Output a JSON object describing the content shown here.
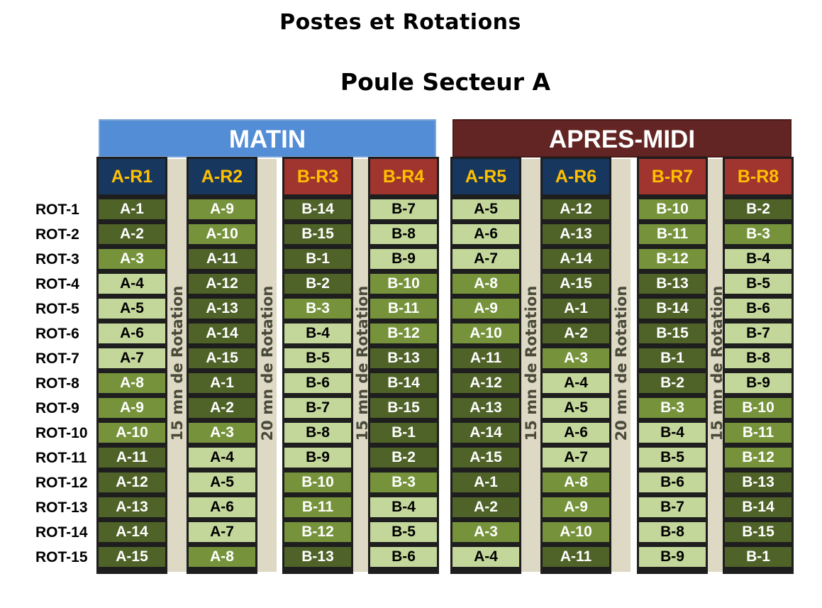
{
  "title": "Postes et Rotations",
  "subtitle": "Poule Secteur A",
  "bands": {
    "morning": "MATIN",
    "afternoon": "APRES-MIDI"
  },
  "row_labels": [
    "ROT-1",
    "ROT-2",
    "ROT-3",
    "ROT-4",
    "ROT-5",
    "ROT-6",
    "ROT-7",
    "ROT-8",
    "ROT-9",
    "ROT-10",
    "ROT-11",
    "ROT-12",
    "ROT-13",
    "ROT-14",
    "ROT-15"
  ],
  "rotation_notes": [
    "15 mn de Rotation",
    "20 mn de Rotation",
    "15 mn de Rotation",
    "15 mn de Rotation",
    "20 mn de Rotation",
    "15 mn de Rotation"
  ],
  "colors": {
    "matin": "#538dd5",
    "apres_midi": "#632523",
    "header_a": "#17375e",
    "header_b": "#a0352f",
    "header_text": "#ffc000",
    "cell_dark": "#4f6228",
    "cell_medium": "#76933c",
    "cell_light": "#c4d79b",
    "rotation_strip": "#ddd9c4"
  },
  "columns": [
    {
      "name": "A-R1",
      "kind": "a",
      "cells": [
        "A-1",
        "A-2",
        "A-3",
        "A-4",
        "A-5",
        "A-6",
        "A-7",
        "A-8",
        "A-9",
        "A-10",
        "A-11",
        "A-12",
        "A-13",
        "A-14",
        "A-15"
      ],
      "shades": [
        "dark",
        "dark",
        "med",
        "light",
        "light",
        "light",
        "light",
        "med",
        "med",
        "med",
        "dark",
        "dark",
        "dark",
        "dark",
        "dark"
      ]
    },
    {
      "name": "A-R2",
      "kind": "a",
      "cells": [
        "A-9",
        "A-10",
        "A-11",
        "A-12",
        "A-13",
        "A-14",
        "A-15",
        "A-1",
        "A-2",
        "A-3",
        "A-4",
        "A-5",
        "A-6",
        "A-7",
        "A-8"
      ],
      "shades": [
        "med",
        "med",
        "dark",
        "dark",
        "dark",
        "dark",
        "dark",
        "dark",
        "dark",
        "med",
        "light",
        "light",
        "light",
        "light",
        "med"
      ]
    },
    {
      "name": "B-R3",
      "kind": "b",
      "cells": [
        "B-14",
        "B-15",
        "B-1",
        "B-2",
        "B-3",
        "B-4",
        "B-5",
        "B-6",
        "B-7",
        "B-8",
        "B-9",
        "B-10",
        "B-11",
        "B-12",
        "B-13"
      ],
      "shades": [
        "dark",
        "dark",
        "dark",
        "dark",
        "med",
        "light",
        "light",
        "light",
        "light",
        "light",
        "light",
        "med",
        "med",
        "med",
        "dark"
      ]
    },
    {
      "name": "B-R4",
      "kind": "b",
      "cells": [
        "B-7",
        "B-8",
        "B-9",
        "B-10",
        "B-11",
        "B-12",
        "B-13",
        "B-14",
        "B-15",
        "B-1",
        "B-2",
        "B-3",
        "B-4",
        "B-5",
        "B-6"
      ],
      "shades": [
        "light",
        "light",
        "light",
        "med",
        "med",
        "med",
        "dark",
        "dark",
        "dark",
        "dark",
        "dark",
        "med",
        "light",
        "light",
        "light"
      ]
    },
    {
      "name": "A-R5",
      "kind": "a",
      "cells": [
        "A-5",
        "A-6",
        "A-7",
        "A-8",
        "A-9",
        "A-10",
        "A-11",
        "A-12",
        "A-13",
        "A-14",
        "A-15",
        "A-1",
        "A-2",
        "A-3",
        "A-4"
      ],
      "shades": [
        "light",
        "light",
        "light",
        "med",
        "med",
        "med",
        "dark",
        "dark",
        "dark",
        "dark",
        "dark",
        "dark",
        "dark",
        "med",
        "light"
      ]
    },
    {
      "name": "A-R6",
      "kind": "a",
      "cells": [
        "A-12",
        "A-13",
        "A-14",
        "A-15",
        "A-1",
        "A-2",
        "A-3",
        "A-4",
        "A-5",
        "A-6",
        "A-7",
        "A-8",
        "A-9",
        "A-10",
        "A-11"
      ],
      "shades": [
        "dark",
        "dark",
        "dark",
        "dark",
        "dark",
        "dark",
        "med",
        "light",
        "light",
        "light",
        "light",
        "med",
        "med",
        "med",
        "dark"
      ]
    },
    {
      "name": "B-R7",
      "kind": "b",
      "cells": [
        "B-10",
        "B-11",
        "B-12",
        "B-13",
        "B-14",
        "B-15",
        "B-1",
        "B-2",
        "B-3",
        "B-4",
        "B-5",
        "B-6",
        "B-7",
        "B-8",
        "B-9"
      ],
      "shades": [
        "med",
        "med",
        "med",
        "dark",
        "dark",
        "dark",
        "dark",
        "dark",
        "med",
        "light",
        "light",
        "light",
        "light",
        "light",
        "light"
      ]
    },
    {
      "name": "B-R8",
      "kind": "b",
      "cells": [
        "B-2",
        "B-3",
        "B-4",
        "B-5",
        "B-6",
        "B-7",
        "B-8",
        "B-9",
        "B-10",
        "B-11",
        "B-12",
        "B-13",
        "B-14",
        "B-15",
        "B-1"
      ],
      "shades": [
        "dark",
        "med",
        "light",
        "light",
        "light",
        "light",
        "light",
        "light",
        "med",
        "med",
        "med",
        "dark",
        "dark",
        "dark",
        "dark"
      ]
    }
  ]
}
